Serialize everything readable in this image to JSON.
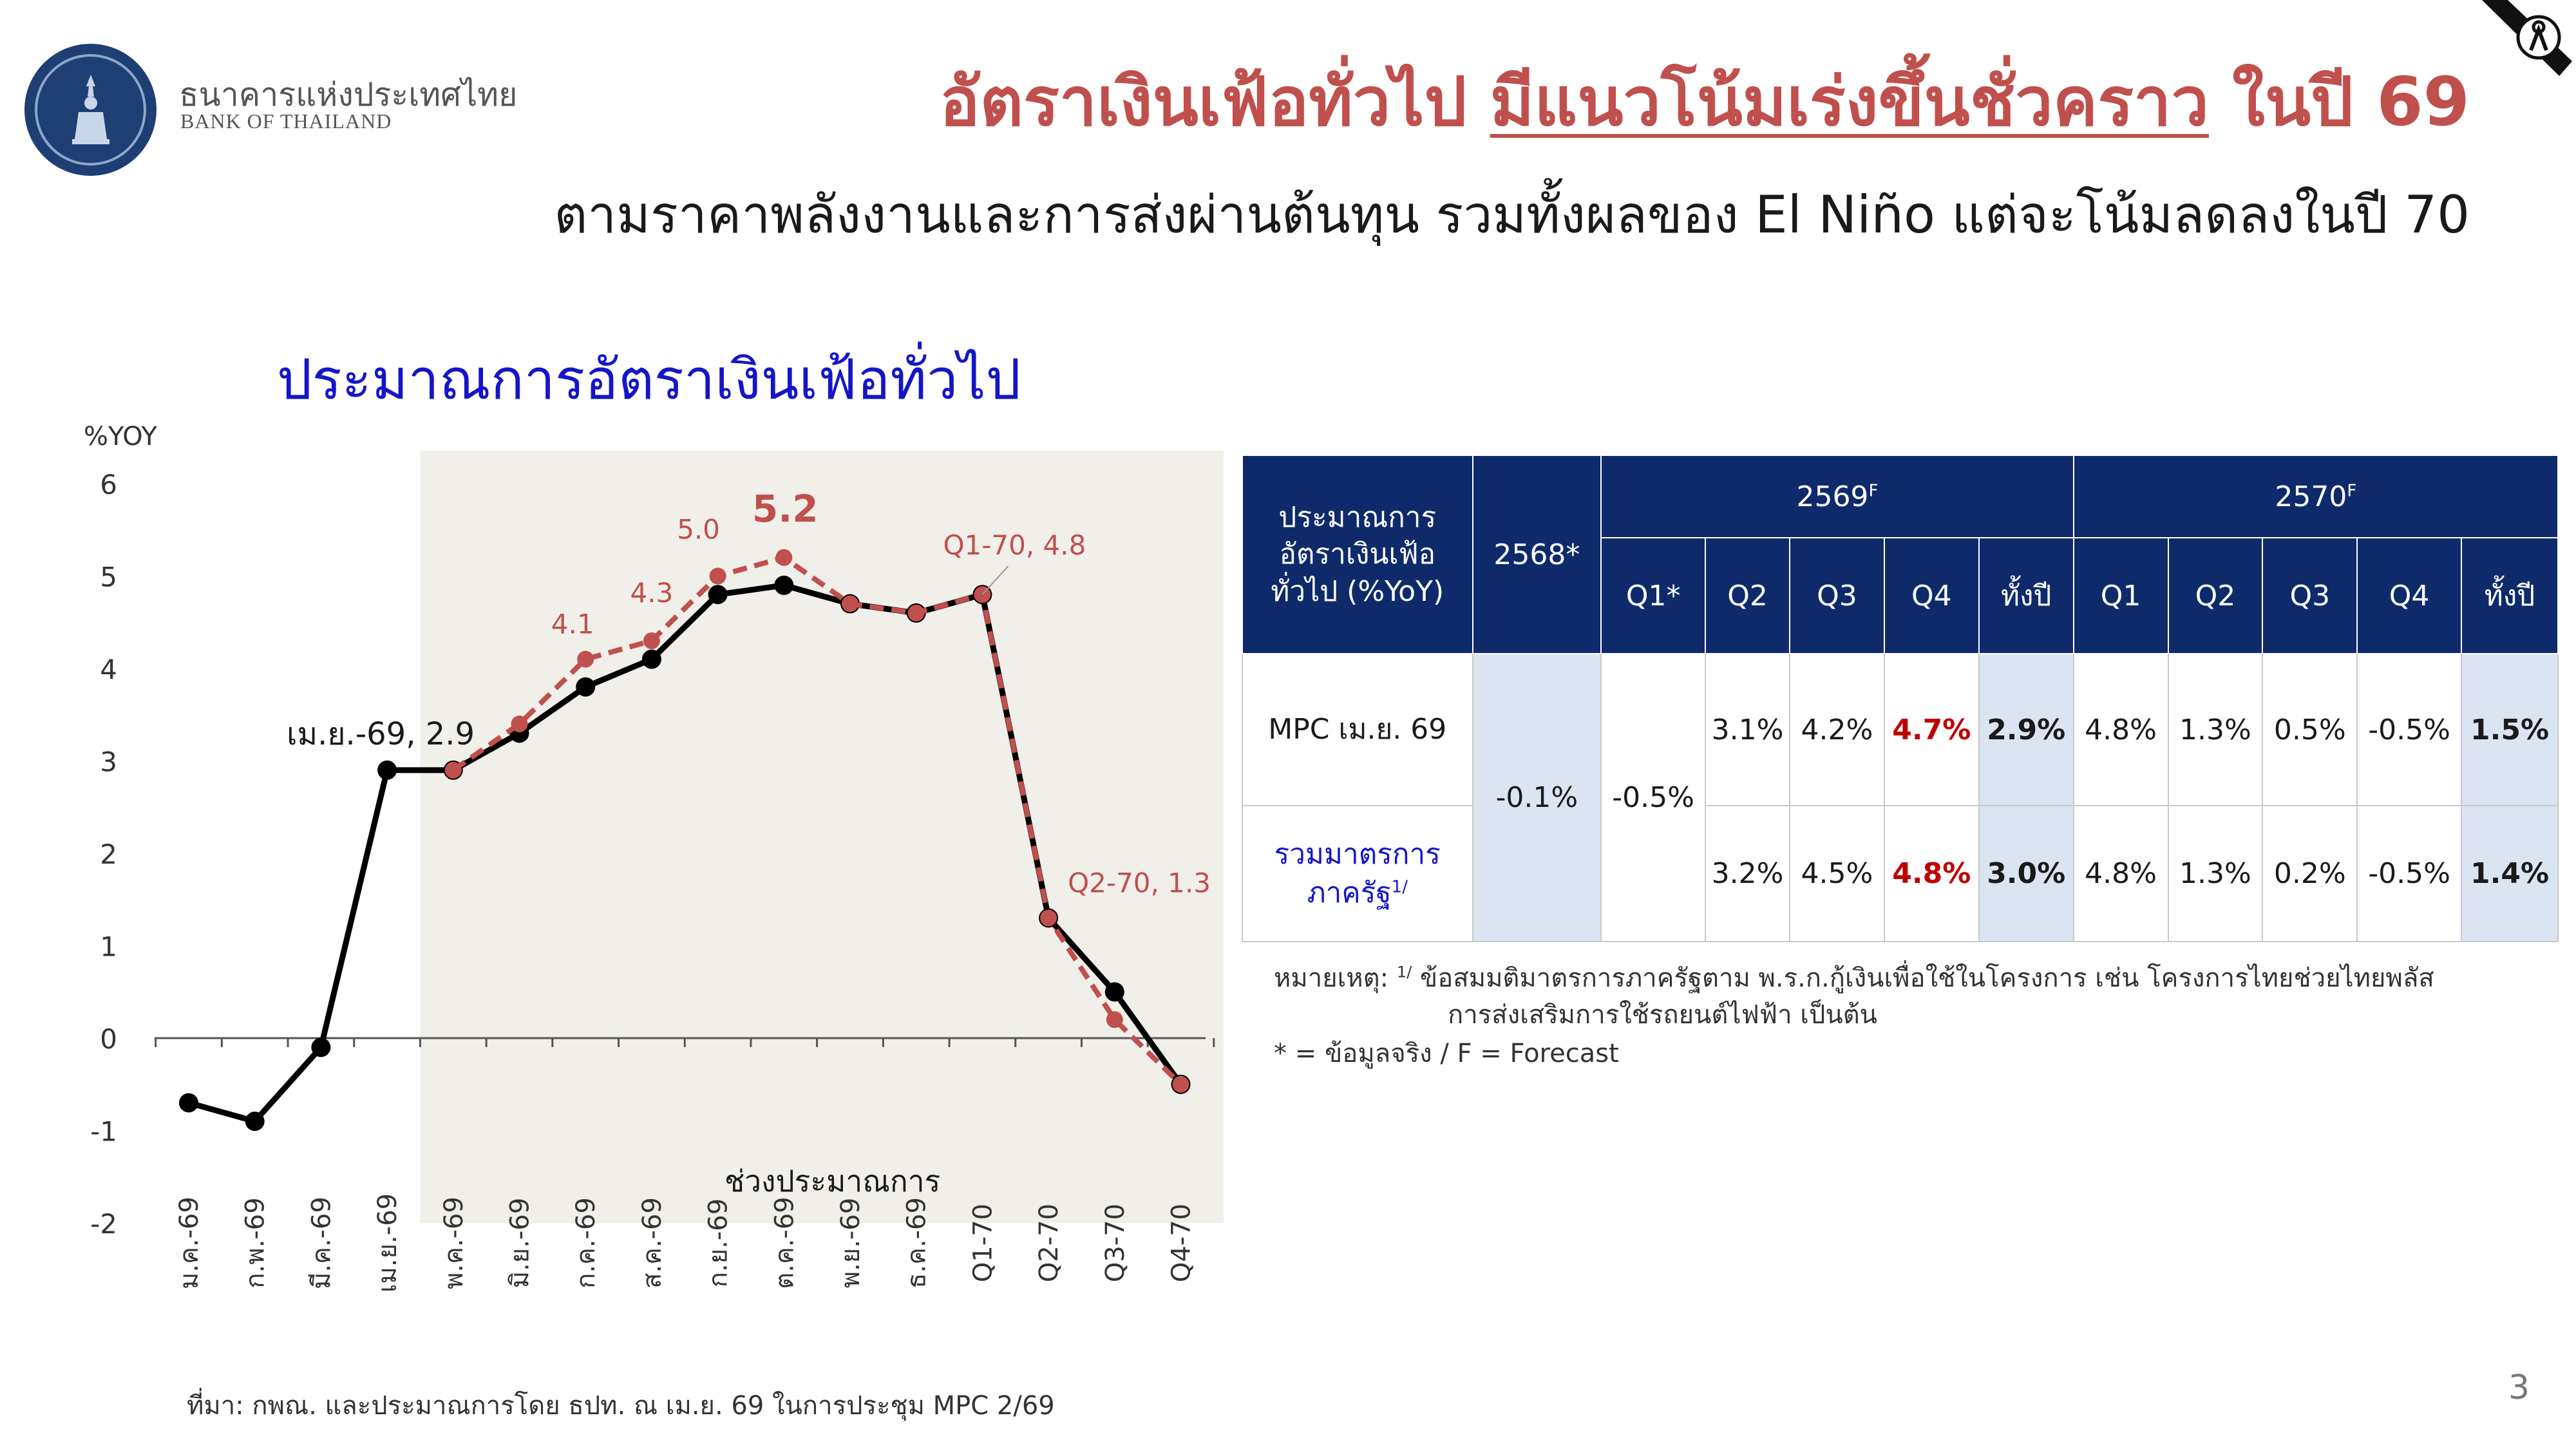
{
  "header": {
    "bank_name_th": "ธนาคารแห่งประเทศไทย",
    "bank_name_en": "BANK OF THAILAND",
    "title_part1": "อัตราเงินเฟ้อทั่วไป ",
    "title_part2": "มีแนวโน้มเร่งขึ้นชั่วคราว",
    "title_part3": " ในปี 69",
    "subtitle": "ตามราคาพลังงานและการส่งผ่านต้นทุน รวมทั้งผลของ El Niño แต่จะโน้มลดลงในปี 70"
  },
  "colors": {
    "title_red": "#c0504d",
    "navy": "#0f2a6b",
    "chart_title_blue": "#1515c8",
    "shade": "#f1efe9",
    "series_actual": "#000000",
    "series_measure": "#c0504d"
  },
  "chart_data": {
    "type": "line",
    "title": "ประมาณการอัตราเงินเฟ้อทั่วไป",
    "ylabel": "%YOY",
    "ylim": [
      -2,
      6
    ],
    "yticks": [
      -2,
      -1,
      0,
      1,
      2,
      3,
      4,
      5,
      6
    ],
    "categories": [
      "ม.ค.-69",
      "ก.พ.-69",
      "มี.ค.-69",
      "เม.ย.-69",
      "พ.ค.-69",
      "มิ.ย.-69",
      "ก.ค.-69",
      "ส.ค.-69",
      "ก.ย.-69",
      "ต.ค.-69",
      "พ.ย.-69",
      "ธ.ค.-69",
      "Q1-70",
      "Q2-70",
      "Q3-70",
      "Q4-70"
    ],
    "series": [
      {
        "values": [
          -0.7,
          -0.9,
          -0.1,
          2.9,
          2.9,
          3.3,
          3.8,
          4.1,
          4.8,
          4.9,
          4.7,
          4.6,
          4.8,
          1.3,
          0.5,
          -0.5
        ]
      },
      {
        "values": [
          null,
          null,
          null,
          null,
          2.9,
          3.4,
          4.1,
          4.3,
          5.0,
          5.2,
          4.7,
          4.6,
          4.8,
          1.3,
          0.2,
          -0.5
        ]
      }
    ],
    "forecast_region_label": "ช่วงประมาณการ",
    "forecast_region_range": [
      "พ.ค.-69",
      "Q4-70"
    ],
    "annotations": [
      {
        "text": "เม.ย.-69, 2.9",
        "category": "เม.ย.-69",
        "value": 2.9
      },
      {
        "text": "4.1",
        "category": "ก.ค.-69",
        "value": 4.1
      },
      {
        "text": "4.3",
        "category": "ส.ค.-69",
        "value": 4.3
      },
      {
        "text": "5.0",
        "category": "ก.ย.-69",
        "value": 5.0
      },
      {
        "text": "5.2",
        "category": "ต.ค.-69",
        "value": 5.2
      },
      {
        "text": "Q1-70, 4.8",
        "category": "Q1-70",
        "value": 4.8
      },
      {
        "text": "Q2-70, 1.3",
        "category": "Q2-70",
        "value": 1.3
      }
    ],
    "grid": false
  },
  "table": {
    "corner_header": "ประมาณการ อัตราเงินเฟ้อ ทั่วไป (%YoY)",
    "col_2568": "2568*",
    "group_2569": "2569",
    "group_2570": "2570",
    "sup_f": "F",
    "sub_2569": [
      "Q1*",
      "Q2",
      "Q3",
      "Q4",
      "ทั้งปี"
    ],
    "sub_2570": [
      "Q1",
      "Q2",
      "Q3",
      "Q4",
      "ทั้งปี"
    ],
    "row1_label": "MPC เม.ย. 69",
    "row2_label": "รวมมาตรการ ภาครัฐ",
    "row2_sup": "1/",
    "shared_2568": "-0.1%",
    "shared_q1_2569": "-0.5%",
    "row1": [
      "3.1%",
      "4.2%",
      "4.7%",
      "2.9%",
      "4.8%",
      "1.3%",
      "0.5%",
      "-0.5%",
      "1.5%"
    ],
    "row2": [
      "3.2%",
      "4.5%",
      "4.8%",
      "3.0%",
      "4.8%",
      "1.3%",
      "0.2%",
      "-0.5%",
      "1.4%"
    ]
  },
  "notes": {
    "note_prefix": "หมายเหตุ: ",
    "note_sup": "1/",
    "note_line1": "  ข้อสมมติมาตรการภาครัฐตาม พ.ร.ก.กู้เงินเพื่อใช้ในโครงการ เช่น โครงการไทยช่วยไทยพลัส",
    "note_line2": "การส่งเสริมการใช้รถยนต์ไฟฟ้า เป็นต้น",
    "note_line3": "* = ข้อมูลจริง / F = Forecast"
  },
  "footer": {
    "source": "ที่มา: กพณ. และประมาณการโดย ธปท. ณ เม.ย. 69 ในการประชุม MPC 2/69",
    "page_number": "3"
  }
}
